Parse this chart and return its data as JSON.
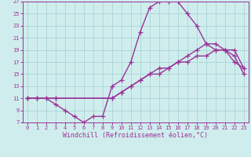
{
  "xlabel": "Windchill (Refroidissement éolien,°C)",
  "ylabel": "",
  "bg_color": "#d0eded",
  "grid_color": "#a8d4d4",
  "line_color": "#993399",
  "xlim": [
    -0.5,
    23.5
  ],
  "ylim": [
    7,
    27
  ],
  "xticks": [
    0,
    1,
    2,
    3,
    4,
    5,
    6,
    7,
    8,
    9,
    10,
    11,
    12,
    13,
    14,
    15,
    16,
    17,
    18,
    19,
    20,
    21,
    22,
    23
  ],
  "yticks": [
    7,
    9,
    11,
    13,
    15,
    17,
    19,
    21,
    23,
    25,
    27
  ],
  "line1_x": [
    0,
    1,
    2,
    3,
    4,
    5,
    6,
    7,
    8,
    9,
    10,
    11,
    12,
    13,
    14,
    15,
    16,
    17,
    18,
    19,
    20,
    21,
    22,
    23
  ],
  "line1_y": [
    11,
    11,
    11,
    10,
    9,
    8,
    7,
    8,
    8,
    13,
    14,
    17,
    22,
    26,
    27,
    27,
    27,
    25,
    23,
    20,
    19,
    19,
    17,
    16
  ],
  "line2_x": [
    0,
    1,
    3,
    9,
    10,
    11,
    12,
    13,
    14,
    15,
    16,
    17,
    18,
    19,
    20,
    21,
    22,
    23
  ],
  "line2_y": [
    11,
    11,
    11,
    11,
    12,
    13,
    14,
    15,
    16,
    16,
    17,
    18,
    19,
    20,
    20,
    19,
    19,
    16
  ],
  "line3_x": [
    0,
    1,
    2,
    3,
    9,
    10,
    11,
    12,
    13,
    14,
    15,
    16,
    17,
    18,
    19,
    20,
    21,
    22,
    23
  ],
  "line3_y": [
    11,
    11,
    11,
    11,
    11,
    12,
    13,
    14,
    15,
    15,
    16,
    17,
    17,
    18,
    18,
    19,
    19,
    18,
    15
  ],
  "marker": "+",
  "markersize": 4,
  "linewidth": 1.0,
  "tick_fontsize": 5,
  "label_fontsize": 6
}
